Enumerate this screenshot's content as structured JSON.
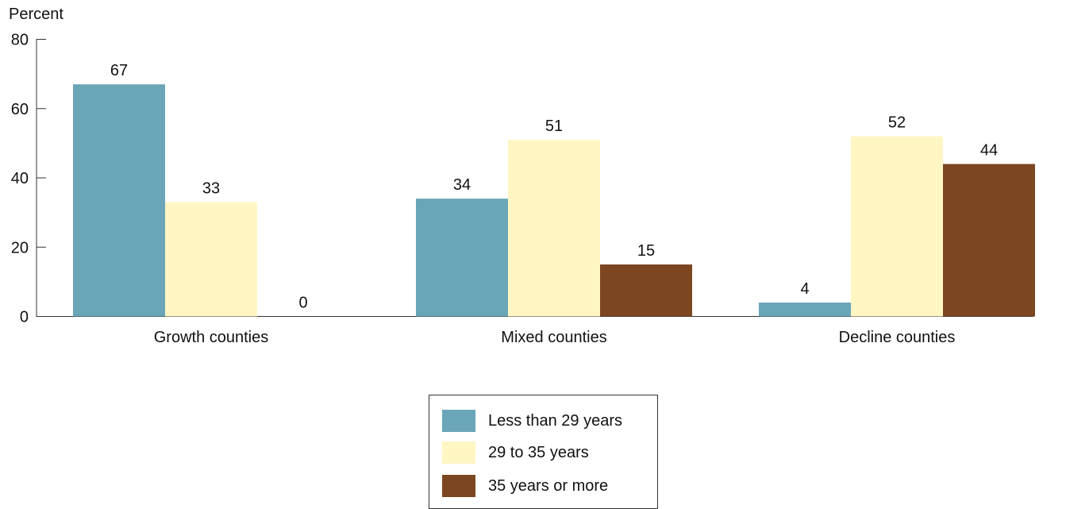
{
  "chart_data": {
    "type": "bar",
    "ylabel": "Percent",
    "xlabel": "",
    "ylim": [
      0,
      80
    ],
    "yticks": [
      0,
      20,
      40,
      60,
      80
    ],
    "categories": [
      "Growth counties",
      "Mixed counties",
      "Decline counties"
    ],
    "series": [
      {
        "name": "Less than 29 years",
        "color": "#6aa5b8",
        "values": [
          67,
          34,
          4
        ]
      },
      {
        "name": "29 to 35 years",
        "color": "#fff6c4",
        "values": [
          33,
          51,
          52
        ]
      },
      {
        "name": "35 years or more",
        "color": "#7c4621",
        "values": [
          0,
          15,
          44
        ]
      }
    ],
    "grid": false,
    "legend_position": "bottom-center"
  }
}
